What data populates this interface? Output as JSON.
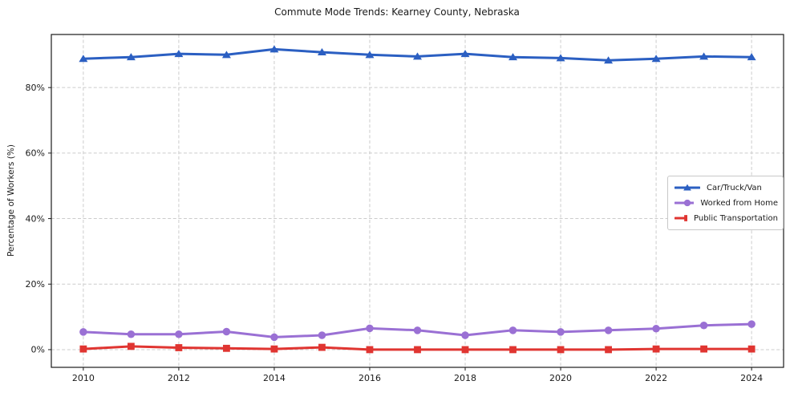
{
  "chart_data": {
    "type": "line",
    "title": "Commute Mode Trends: Kearney County, Nebraska",
    "xlabel": "",
    "ylabel": "Percentage of Workers (%)",
    "x": [
      2010,
      2011,
      2012,
      2013,
      2014,
      2015,
      2016,
      2017,
      2018,
      2019,
      2020,
      2021,
      2022,
      2023,
      2024
    ],
    "series": [
      {
        "name": "Car/Truck/Van",
        "color": "#2b5fc2",
        "marker": "triangle",
        "values": [
          88.8,
          89.3,
          90.3,
          90.0,
          91.7,
          90.8,
          90.0,
          89.5,
          90.3,
          89.3,
          89.0,
          88.3,
          88.8,
          89.5,
          89.3
        ]
      },
      {
        "name": "Worked from Home",
        "color": "#9a70d4",
        "marker": "circle",
        "values": [
          5.4,
          4.7,
          4.7,
          5.5,
          3.8,
          4.4,
          6.5,
          5.9,
          4.4,
          5.9,
          5.4,
          5.9,
          6.4,
          7.4,
          7.8
        ]
      },
      {
        "name": "Public Transportation",
        "color": "#e03531",
        "marker": "square",
        "values": [
          0.2,
          1.0,
          0.6,
          0.4,
          0.2,
          0.7,
          0.0,
          0.0,
          0.0,
          0.0,
          0.0,
          0.0,
          0.2,
          0.2,
          0.2
        ]
      }
    ],
    "xlim": [
      2009.33,
      2024.67
    ],
    "ylim": [
      -5.4,
      96.2
    ],
    "xticks": {
      "values": [
        2010,
        2012,
        2014,
        2016,
        2018,
        2020,
        2022,
        2024
      ],
      "labels": [
        "2010",
        "2012",
        "2014",
        "2016",
        "2018",
        "2020",
        "2022",
        "2024"
      ]
    },
    "yticks": {
      "values": [
        0,
        20,
        40,
        60,
        80
      ],
      "labels": [
        "0%",
        "20%",
        "40%",
        "60%",
        "80%"
      ]
    },
    "grid": true,
    "grid_style": "dashed",
    "grid_color": "#cccccc",
    "spine_color": "#1a1a1a",
    "legend_position": "center right"
  }
}
